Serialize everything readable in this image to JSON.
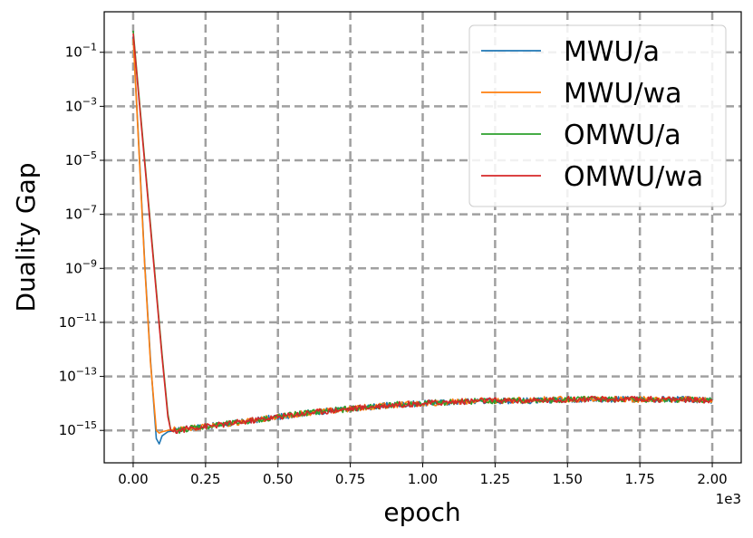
{
  "chart_data": {
    "type": "line",
    "title": "",
    "xlabel": "epoch",
    "ylabel": "Duality Gap",
    "x_offset_text": "1e3",
    "xlim": [
      -0.1,
      2.1
    ],
    "ylim_log10": [
      -16.2,
      0.5
    ],
    "y_scale": "log",
    "grid": true,
    "grid_style": "dashed gray",
    "legend_position": "top-right",
    "x_ticks": [
      "0.00",
      "0.25",
      "0.50",
      "0.75",
      "1.00",
      "1.25",
      "1.50",
      "1.75",
      "2.00"
    ],
    "x_tick_values": [
      0,
      0.25,
      0.5,
      0.75,
      1.0,
      1.25,
      1.5,
      1.75,
      2.0
    ],
    "y_tick_exponents": [
      "-1",
      "-3",
      "-5",
      "-7",
      "-9",
      "-11",
      "-13",
      "-15"
    ],
    "y_tick_values": [
      -1,
      -3,
      -5,
      -7,
      -9,
      -11,
      -13,
      -15
    ],
    "series": [
      {
        "name": "MWU/a",
        "color": "#1f77b4",
        "x": [
          0,
          0.02,
          0.04,
          0.06,
          0.08,
          0.09,
          0.1,
          0.12,
          0.15,
          0.2,
          0.3,
          0.4,
          0.5,
          0.6,
          0.7,
          0.8,
          0.9,
          1.0,
          1.1,
          1.2,
          1.3,
          1.4,
          1.5,
          1.6,
          1.7,
          1.8,
          1.9,
          2.0
        ],
        "log10_y": [
          -0.4,
          -4.5,
          -8.8,
          -12.4,
          -15.3,
          -15.5,
          -15.2,
          -15.05,
          -15.0,
          -14.9,
          -14.8,
          -14.65,
          -14.5,
          -14.35,
          -14.25,
          -14.15,
          -14.05,
          -14.0,
          -13.95,
          -13.9,
          -13.9,
          -13.9,
          -13.85,
          -13.85,
          -13.85,
          -13.85,
          -13.85,
          -13.9
        ]
      },
      {
        "name": "MWU/wa",
        "color": "#ff7f0e",
        "x": [
          0,
          0.02,
          0.04,
          0.06,
          0.08,
          0.09,
          0.1,
          0.12,
          0.15,
          0.2,
          0.3,
          0.4,
          0.5,
          0.6,
          0.7,
          0.8,
          0.9,
          1.0,
          1.1,
          1.2,
          1.3,
          1.4,
          1.5,
          1.6,
          1.7,
          1.8,
          1.9,
          2.0
        ],
        "log10_y": [
          -0.5,
          -4.6,
          -8.9,
          -12.5,
          -15.0,
          -15.1,
          -15.05,
          -15.0,
          -14.95,
          -14.9,
          -14.8,
          -14.65,
          -14.5,
          -14.35,
          -14.25,
          -14.15,
          -14.05,
          -14.0,
          -13.95,
          -13.9,
          -13.9,
          -13.85,
          -13.85,
          -13.85,
          -13.85,
          -13.85,
          -13.85,
          -13.9
        ]
      },
      {
        "name": "OMWU/a",
        "color": "#2ca02c",
        "x": [
          0,
          0.02,
          0.04,
          0.06,
          0.08,
          0.1,
          0.12,
          0.13,
          0.14,
          0.16,
          0.2,
          0.3,
          0.4,
          0.5,
          0.6,
          0.7,
          0.8,
          0.9,
          1.0,
          1.1,
          1.2,
          1.3,
          1.4,
          1.5,
          1.6,
          1.7,
          1.8,
          1.9,
          2.0
        ],
        "log10_y": [
          -0.2,
          -2.6,
          -5.0,
          -7.4,
          -9.8,
          -12.2,
          -14.4,
          -15.0,
          -15.05,
          -15.0,
          -14.9,
          -14.8,
          -14.65,
          -14.5,
          -14.35,
          -14.25,
          -14.15,
          -14.05,
          -14.0,
          -13.95,
          -13.9,
          -13.9,
          -13.9,
          -13.85,
          -13.85,
          -13.85,
          -13.85,
          -13.85,
          -13.9
        ]
      },
      {
        "name": "OMWU/wa",
        "color": "#d62728",
        "x": [
          0,
          0.02,
          0.04,
          0.06,
          0.08,
          0.1,
          0.12,
          0.13,
          0.14,
          0.16,
          0.2,
          0.3,
          0.4,
          0.5,
          0.6,
          0.7,
          0.8,
          0.9,
          1.0,
          1.1,
          1.2,
          1.3,
          1.4,
          1.5,
          1.6,
          1.7,
          1.8,
          1.9,
          2.0
        ],
        "log10_y": [
          -0.3,
          -2.7,
          -5.1,
          -7.5,
          -9.9,
          -12.3,
          -14.5,
          -15.0,
          -15.05,
          -15.0,
          -14.9,
          -14.8,
          -14.65,
          -14.5,
          -14.35,
          -14.25,
          -14.15,
          -14.05,
          -14.0,
          -13.95,
          -13.9,
          -13.9,
          -13.9,
          -13.85,
          -13.85,
          -13.85,
          -13.85,
          -13.85,
          -13.9
        ]
      }
    ]
  }
}
